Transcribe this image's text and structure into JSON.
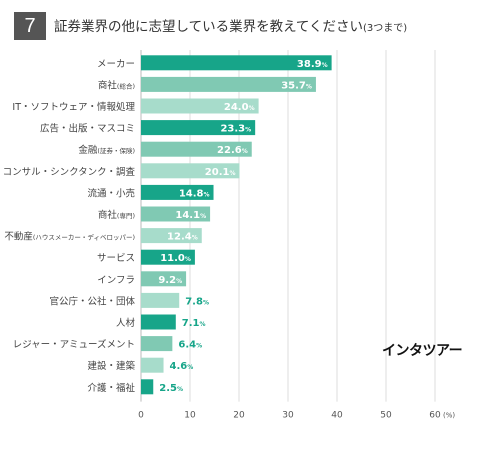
{
  "question_number": "7",
  "title": "証券業界の他に志望している業界を教えてください",
  "title_note": "(3つまで)",
  "brand": "インタツアー",
  "colors": {
    "dark": "#17a589",
    "light": "#a7dccb",
    "mid": "#80c9b3",
    "grid": "#dddddd"
  },
  "chart_data": {
    "type": "bar",
    "orientation": "horizontal",
    "title": "証券業界の他に志望している業界を教えてください(3つまで)",
    "categories": [
      {
        "main": "メーカー",
        "sub": ""
      },
      {
        "main": "商社",
        "sub": "(総合)"
      },
      {
        "main": "IT・ソフトウェア・情報処理",
        "sub": ""
      },
      {
        "main": "広告・出版・マスコミ",
        "sub": ""
      },
      {
        "main": "金融",
        "sub": "(証券・保険)"
      },
      {
        "main": "コンサル・シンクタンク・調査",
        "sub": ""
      },
      {
        "main": "流通・小売",
        "sub": ""
      },
      {
        "main": "商社",
        "sub": "(専門)"
      },
      {
        "main": "不動産",
        "sub": "(ハウスメーカー・ディベロッパー)"
      },
      {
        "main": "サービス",
        "sub": ""
      },
      {
        "main": "インフラ",
        "sub": ""
      },
      {
        "main": "官公庁・公社・団体",
        "sub": ""
      },
      {
        "main": "人材",
        "sub": ""
      },
      {
        "main": "レジャー・アミューズメント",
        "sub": ""
      },
      {
        "main": "建設・建築",
        "sub": ""
      },
      {
        "main": "介護・福祉",
        "sub": ""
      }
    ],
    "values": [
      38.9,
      35.7,
      24.0,
      23.3,
      22.6,
      20.1,
      14.8,
      14.1,
      12.4,
      11.0,
      9.2,
      7.8,
      7.1,
      6.4,
      4.6,
      2.5
    ],
    "value_labels": [
      "38.9",
      "35.7",
      "24.0",
      "23.3",
      "22.6",
      "20.1",
      "14.8",
      "14.1",
      "12.4",
      "11.0",
      "9.2",
      "7.8",
      "7.1",
      "6.4",
      "4.6",
      "2.5"
    ],
    "value_unit": "%",
    "shade": [
      "dark",
      "mid",
      "light",
      "dark",
      "mid",
      "light",
      "dark",
      "mid",
      "light",
      "dark",
      "mid",
      "light",
      "dark",
      "mid",
      "light",
      "dark"
    ],
    "xlim": [
      0,
      60
    ],
    "xticks": [
      0,
      10,
      20,
      30,
      40,
      50,
      60
    ],
    "xunit": "(%)",
    "grid": true
  }
}
